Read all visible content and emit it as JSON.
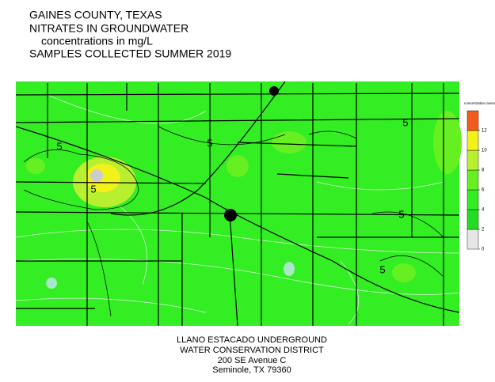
{
  "header": {
    "lines": [
      "GAINES COUNTY, TEXAS",
      "NITRATES IN GROUNDWATER",
      "concentrations in mg/L",
      "SAMPLES COLLECTED SUMMER 2019"
    ]
  },
  "map": {
    "contour_labels": [
      "5",
      "5",
      "5",
      "5",
      "5",
      "5"
    ]
  },
  "legend": {
    "title": "concentration averages, mg/L",
    "range": [
      0,
      14
    ],
    "ticks": [
      0,
      2,
      4,
      6,
      8,
      10,
      12
    ],
    "colors": [
      "#e6e6e6",
      "#22dd22",
      "#33ee22",
      "#66f022",
      "#b8f030",
      "#f2f21a",
      "#f25a1e"
    ]
  },
  "footer": {
    "lines": [
      "LLANO ESTACADO UNDERGROUND",
      "WATER CONSERVATION DISTRICT",
      "200 SE Avenue C",
      "Seminole, TX  79360"
    ]
  }
}
